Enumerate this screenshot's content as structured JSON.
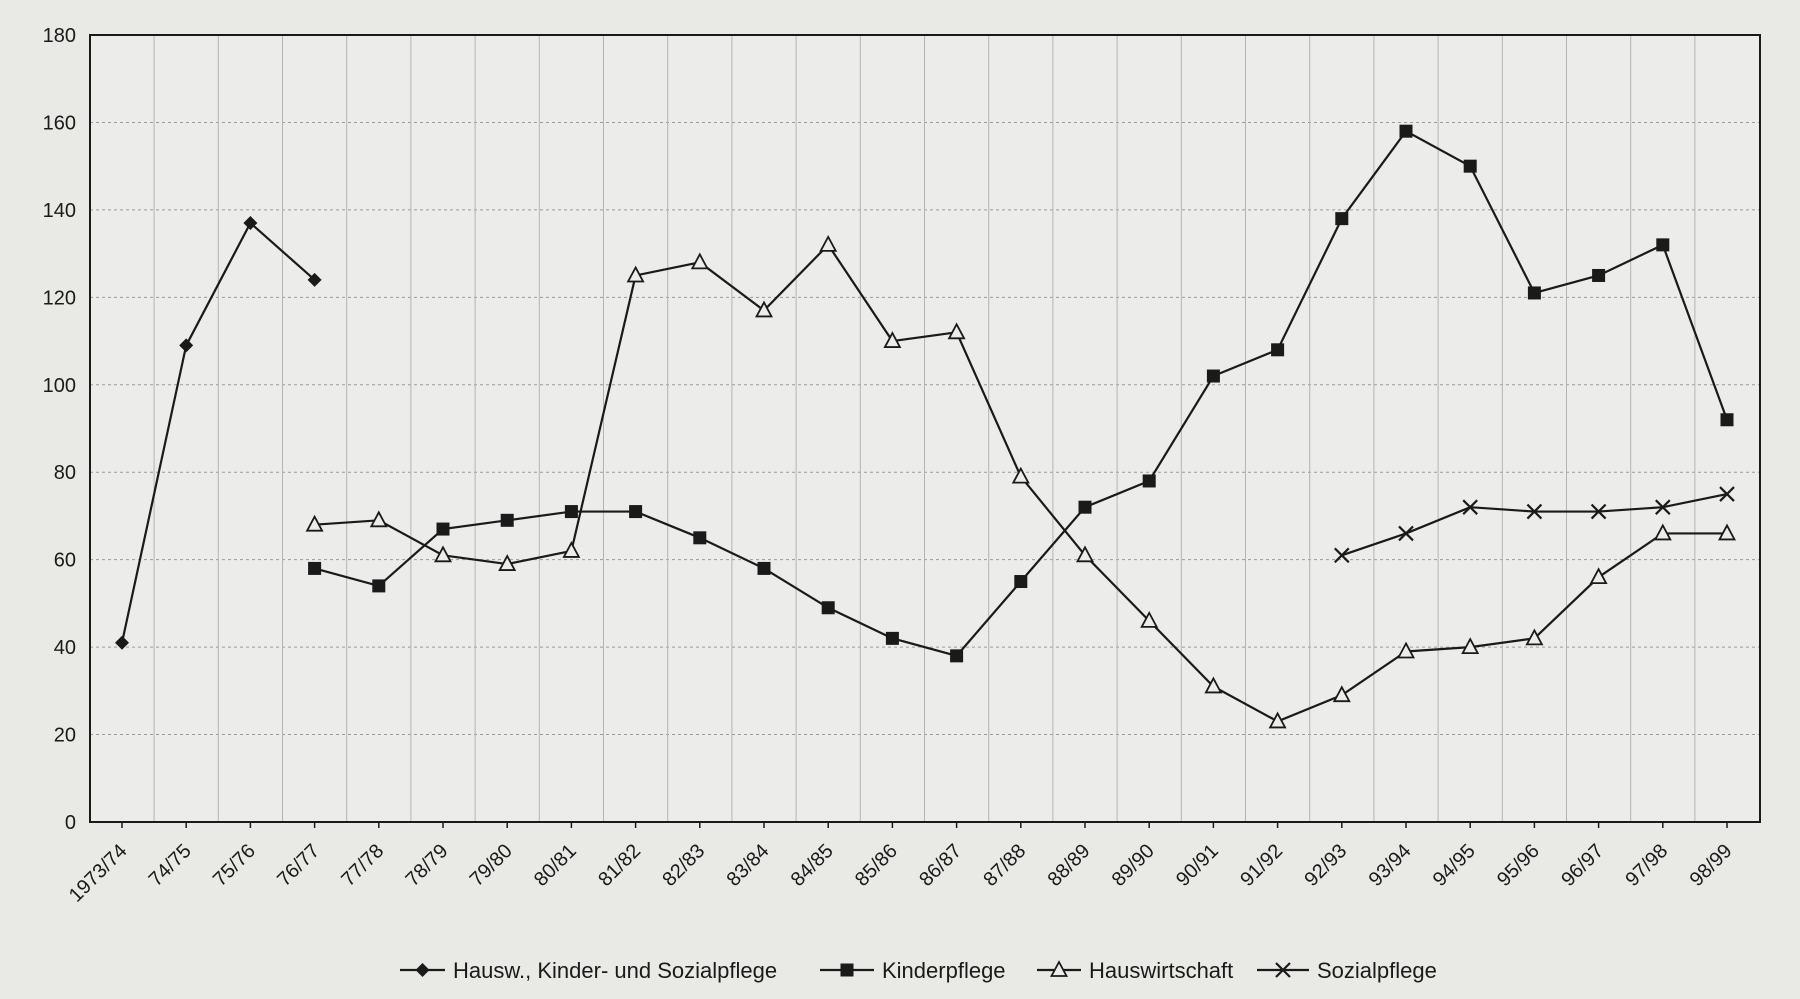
{
  "chart_data": {
    "type": "line",
    "title": "",
    "xlabel": "",
    "ylabel": "",
    "ylim": [
      0,
      180
    ],
    "yticks": [
      0,
      20,
      40,
      60,
      80,
      100,
      120,
      140,
      160,
      180
    ],
    "grid": true,
    "legend_position": "bottom",
    "categories": [
      "1973/74",
      "74/75",
      "75/76",
      "76/77",
      "77/78",
      "78/79",
      "79/80",
      "80/81",
      "81/82",
      "82/83",
      "83/84",
      "84/85",
      "85/86",
      "86/87",
      "87/88",
      "88/89",
      "89/90",
      "90/91",
      "91/92",
      "92/93",
      "93/94",
      "94/95",
      "95/96",
      "96/97",
      "97/98",
      "98/99"
    ],
    "series": [
      {
        "name": "Hausw., Kinder- und Sozialpflege",
        "marker": "diamond",
        "color": "#1a1a1a",
        "values": [
          41,
          109,
          137,
          124,
          null,
          null,
          null,
          null,
          null,
          null,
          null,
          null,
          null,
          null,
          null,
          null,
          null,
          null,
          null,
          null,
          null,
          null,
          null,
          null,
          null,
          null
        ]
      },
      {
        "name": "Kinderpflege",
        "marker": "square",
        "color": "#1a1a1a",
        "values": [
          null,
          null,
          null,
          58,
          54,
          67,
          69,
          71,
          71,
          65,
          58,
          49,
          42,
          38,
          55,
          72,
          78,
          102,
          108,
          138,
          158,
          150,
          121,
          125,
          132,
          92
        ]
      },
      {
        "name": "Hauswirtschaft",
        "marker": "triangle",
        "color": "#1a1a1a",
        "values": [
          null,
          null,
          null,
          68,
          69,
          61,
          59,
          62,
          125,
          128,
          117,
          132,
          110,
          112,
          79,
          61,
          46,
          31,
          23,
          29,
          39,
          40,
          42,
          56,
          66,
          66
        ]
      },
      {
        "name": "Sozialpflege",
        "marker": "x",
        "color": "#1a1a1a",
        "values": [
          null,
          null,
          null,
          null,
          null,
          null,
          null,
          null,
          null,
          null,
          null,
          null,
          null,
          null,
          null,
          null,
          null,
          null,
          null,
          61,
          66,
          72,
          71,
          71,
          72,
          75
        ]
      }
    ]
  }
}
